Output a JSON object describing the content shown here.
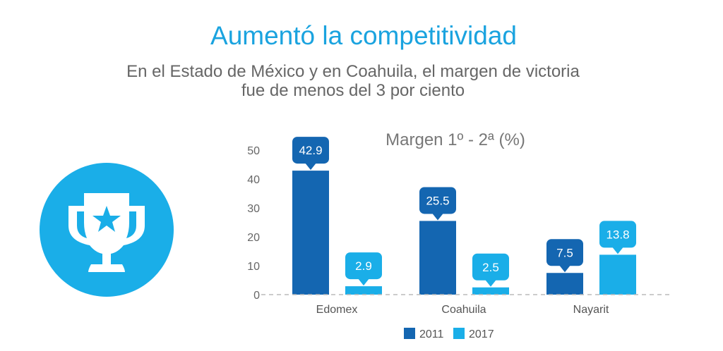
{
  "header": {
    "title": "Aumentó la competitividad",
    "subtitle_line1": "En el Estado de México y en Coahuila, el margen de victoria",
    "subtitle_line2": "fue de menos del 3 por ciento"
  },
  "icon": {
    "name": "trophy-star-icon",
    "color": "#1aaee8"
  },
  "chart_data": {
    "type": "bar",
    "title": "Margen 1º - 2ª (%)",
    "categories": [
      "Edomex",
      "Coahuila",
      "Nayarit"
    ],
    "series": [
      {
        "name": "2011",
        "values": [
          42.9,
          25.5,
          7.5
        ],
        "color": "#1466b1"
      },
      {
        "name": "2017",
        "values": [
          2.9,
          2.5,
          13.8
        ],
        "color": "#1aaee8"
      }
    ],
    "ylim": [
      0,
      50
    ],
    "yticks": [
      0,
      10,
      20,
      30,
      40,
      50
    ],
    "grid": false,
    "data_labels": true,
    "legend": "bottom"
  }
}
